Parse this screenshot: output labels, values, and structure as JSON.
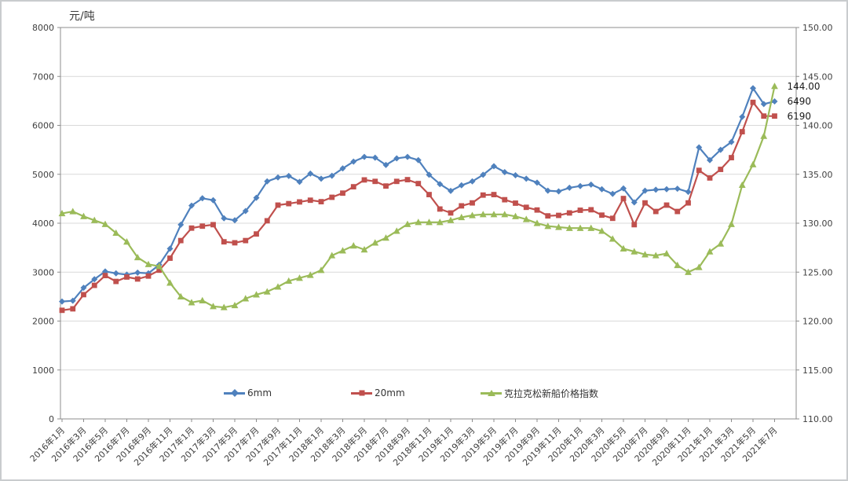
{
  "window": {
    "background": "#ffffff",
    "border_color": "#c9ccce"
  },
  "colors": {
    "gridline": "#d9d9d9",
    "plot_border": "#8c8c8c",
    "axis": "#8c8c8c",
    "tick_label": "#404040",
    "data_label": "#1a1a1a"
  },
  "chart_data": {
    "type": "line",
    "title": "",
    "grid": "horizontal",
    "legend_position": "bottom-inside",
    "x_tick_every": 2,
    "axis_left": {
      "title": "元/吨",
      "min": 0,
      "max": 8000,
      "step": 1000
    },
    "axis_right": {
      "min": 110,
      "max": 150,
      "step": 5,
      "decimals": 2
    },
    "categories": [
      "2016年1月",
      "2016年2月",
      "2016年3月",
      "2016年4月",
      "2016年5月",
      "2016年6月",
      "2016年7月",
      "2016年8月",
      "2016年9月",
      "2016年10月",
      "2016年11月",
      "2016年12月",
      "2017年1月",
      "2017年2月",
      "2017年3月",
      "2017年4月",
      "2017年5月",
      "2017年6月",
      "2017年7月",
      "2017年8月",
      "2017年9月",
      "2017年10月",
      "2017年11月",
      "2017年12月",
      "2018年1月",
      "2018年2月",
      "2018年3月",
      "2018年4月",
      "2018年5月",
      "2018年6月",
      "2018年7月",
      "2018年8月",
      "2018年9月",
      "2018年10月",
      "2018年11月",
      "2018年12月",
      "2019年1月",
      "2019年2月",
      "2019年3月",
      "2019年4月",
      "2019年5月",
      "2019年6月",
      "2019年7月",
      "2019年8月",
      "2019年9月",
      "2019年10月",
      "2019年11月",
      "2019年12月",
      "2020年1月",
      "2020年2月",
      "2020年3月",
      "2020年4月",
      "2020年5月",
      "2020年6月",
      "2020年7月",
      "2020年8月",
      "2020年9月",
      "2020年10月",
      "2020年11月",
      "2020年12月",
      "2021年1月",
      "2021年2月",
      "2021年3月",
      "2021年4月",
      "2021年5月",
      "2021年6月",
      "2021年7月"
    ],
    "series": [
      {
        "name": "6mm",
        "color": "#4F81BD",
        "marker": "diamond",
        "axis": "left",
        "end_label": "6490",
        "values": [
          2400,
          2415,
          2680,
          2855,
          3015,
          2975,
          2950,
          2990,
          2975,
          3150,
          3480,
          3970,
          4360,
          4510,
          4470,
          4100,
          4060,
          4250,
          4520,
          4855,
          4935,
          4965,
          4845,
          5015,
          4910,
          4970,
          5120,
          5260,
          5355,
          5340,
          5190,
          5325,
          5355,
          5290,
          4990,
          4800,
          4660,
          4775,
          4855,
          4990,
          5165,
          5045,
          4980,
          4910,
          4830,
          4665,
          4650,
          4725,
          4760,
          4790,
          4695,
          4600,
          4710,
          4425,
          4665,
          4685,
          4695,
          4705,
          4640,
          5550,
          5290,
          5500,
          5660,
          6175,
          6760,
          6435,
          6490
        ]
      },
      {
        "name": "20mm",
        "color": "#C0504D",
        "marker": "square",
        "axis": "left",
        "end_label": "6190",
        "values": [
          2220,
          2250,
          2540,
          2730,
          2930,
          2810,
          2900,
          2860,
          2920,
          3040,
          3285,
          3645,
          3900,
          3940,
          3970,
          3620,
          3600,
          3645,
          3780,
          4050,
          4370,
          4400,
          4435,
          4470,
          4440,
          4530,
          4615,
          4745,
          4885,
          4855,
          4760,
          4855,
          4890,
          4810,
          4585,
          4290,
          4210,
          4355,
          4415,
          4575,
          4585,
          4480,
          4410,
          4325,
          4270,
          4150,
          4160,
          4210,
          4265,
          4275,
          4165,
          4100,
          4505,
          3970,
          4415,
          4240,
          4370,
          4240,
          4415,
          5080,
          4925,
          5100,
          5340,
          5870,
          6470,
          6190,
          6190
        ]
      },
      {
        "name": "克拉克松新船价格指数",
        "color": "#9BBB59",
        "marker": "triangle",
        "axis": "right",
        "end_label": "144.00",
        "values": [
          131.0,
          131.2,
          130.7,
          130.3,
          129.9,
          129.0,
          128.1,
          126.5,
          125.8,
          125.6,
          123.9,
          122.5,
          121.9,
          122.1,
          121.5,
          121.4,
          121.6,
          122.3,
          122.7,
          123.0,
          123.5,
          124.1,
          124.4,
          124.7,
          125.2,
          126.7,
          127.2,
          127.7,
          127.3,
          128.0,
          128.5,
          129.2,
          129.9,
          130.1,
          130.1,
          130.1,
          130.3,
          130.6,
          130.8,
          130.9,
          130.9,
          130.9,
          130.7,
          130.4,
          130.0,
          129.7,
          129.6,
          129.5,
          129.5,
          129.5,
          129.2,
          128.4,
          127.4,
          127.1,
          126.8,
          126.7,
          126.9,
          125.7,
          125.0,
          125.5,
          127.1,
          127.9,
          129.9,
          133.9,
          136.0,
          138.9,
          144.0
        ]
      }
    ]
  },
  "legend": {
    "items": [
      {
        "label": "6mm"
      },
      {
        "label": "20mm"
      },
      {
        "label": "克拉克松新船价格指数"
      }
    ]
  },
  "end_labels": {
    "index": "144.00",
    "mm6": "6490",
    "mm20": "6190"
  }
}
